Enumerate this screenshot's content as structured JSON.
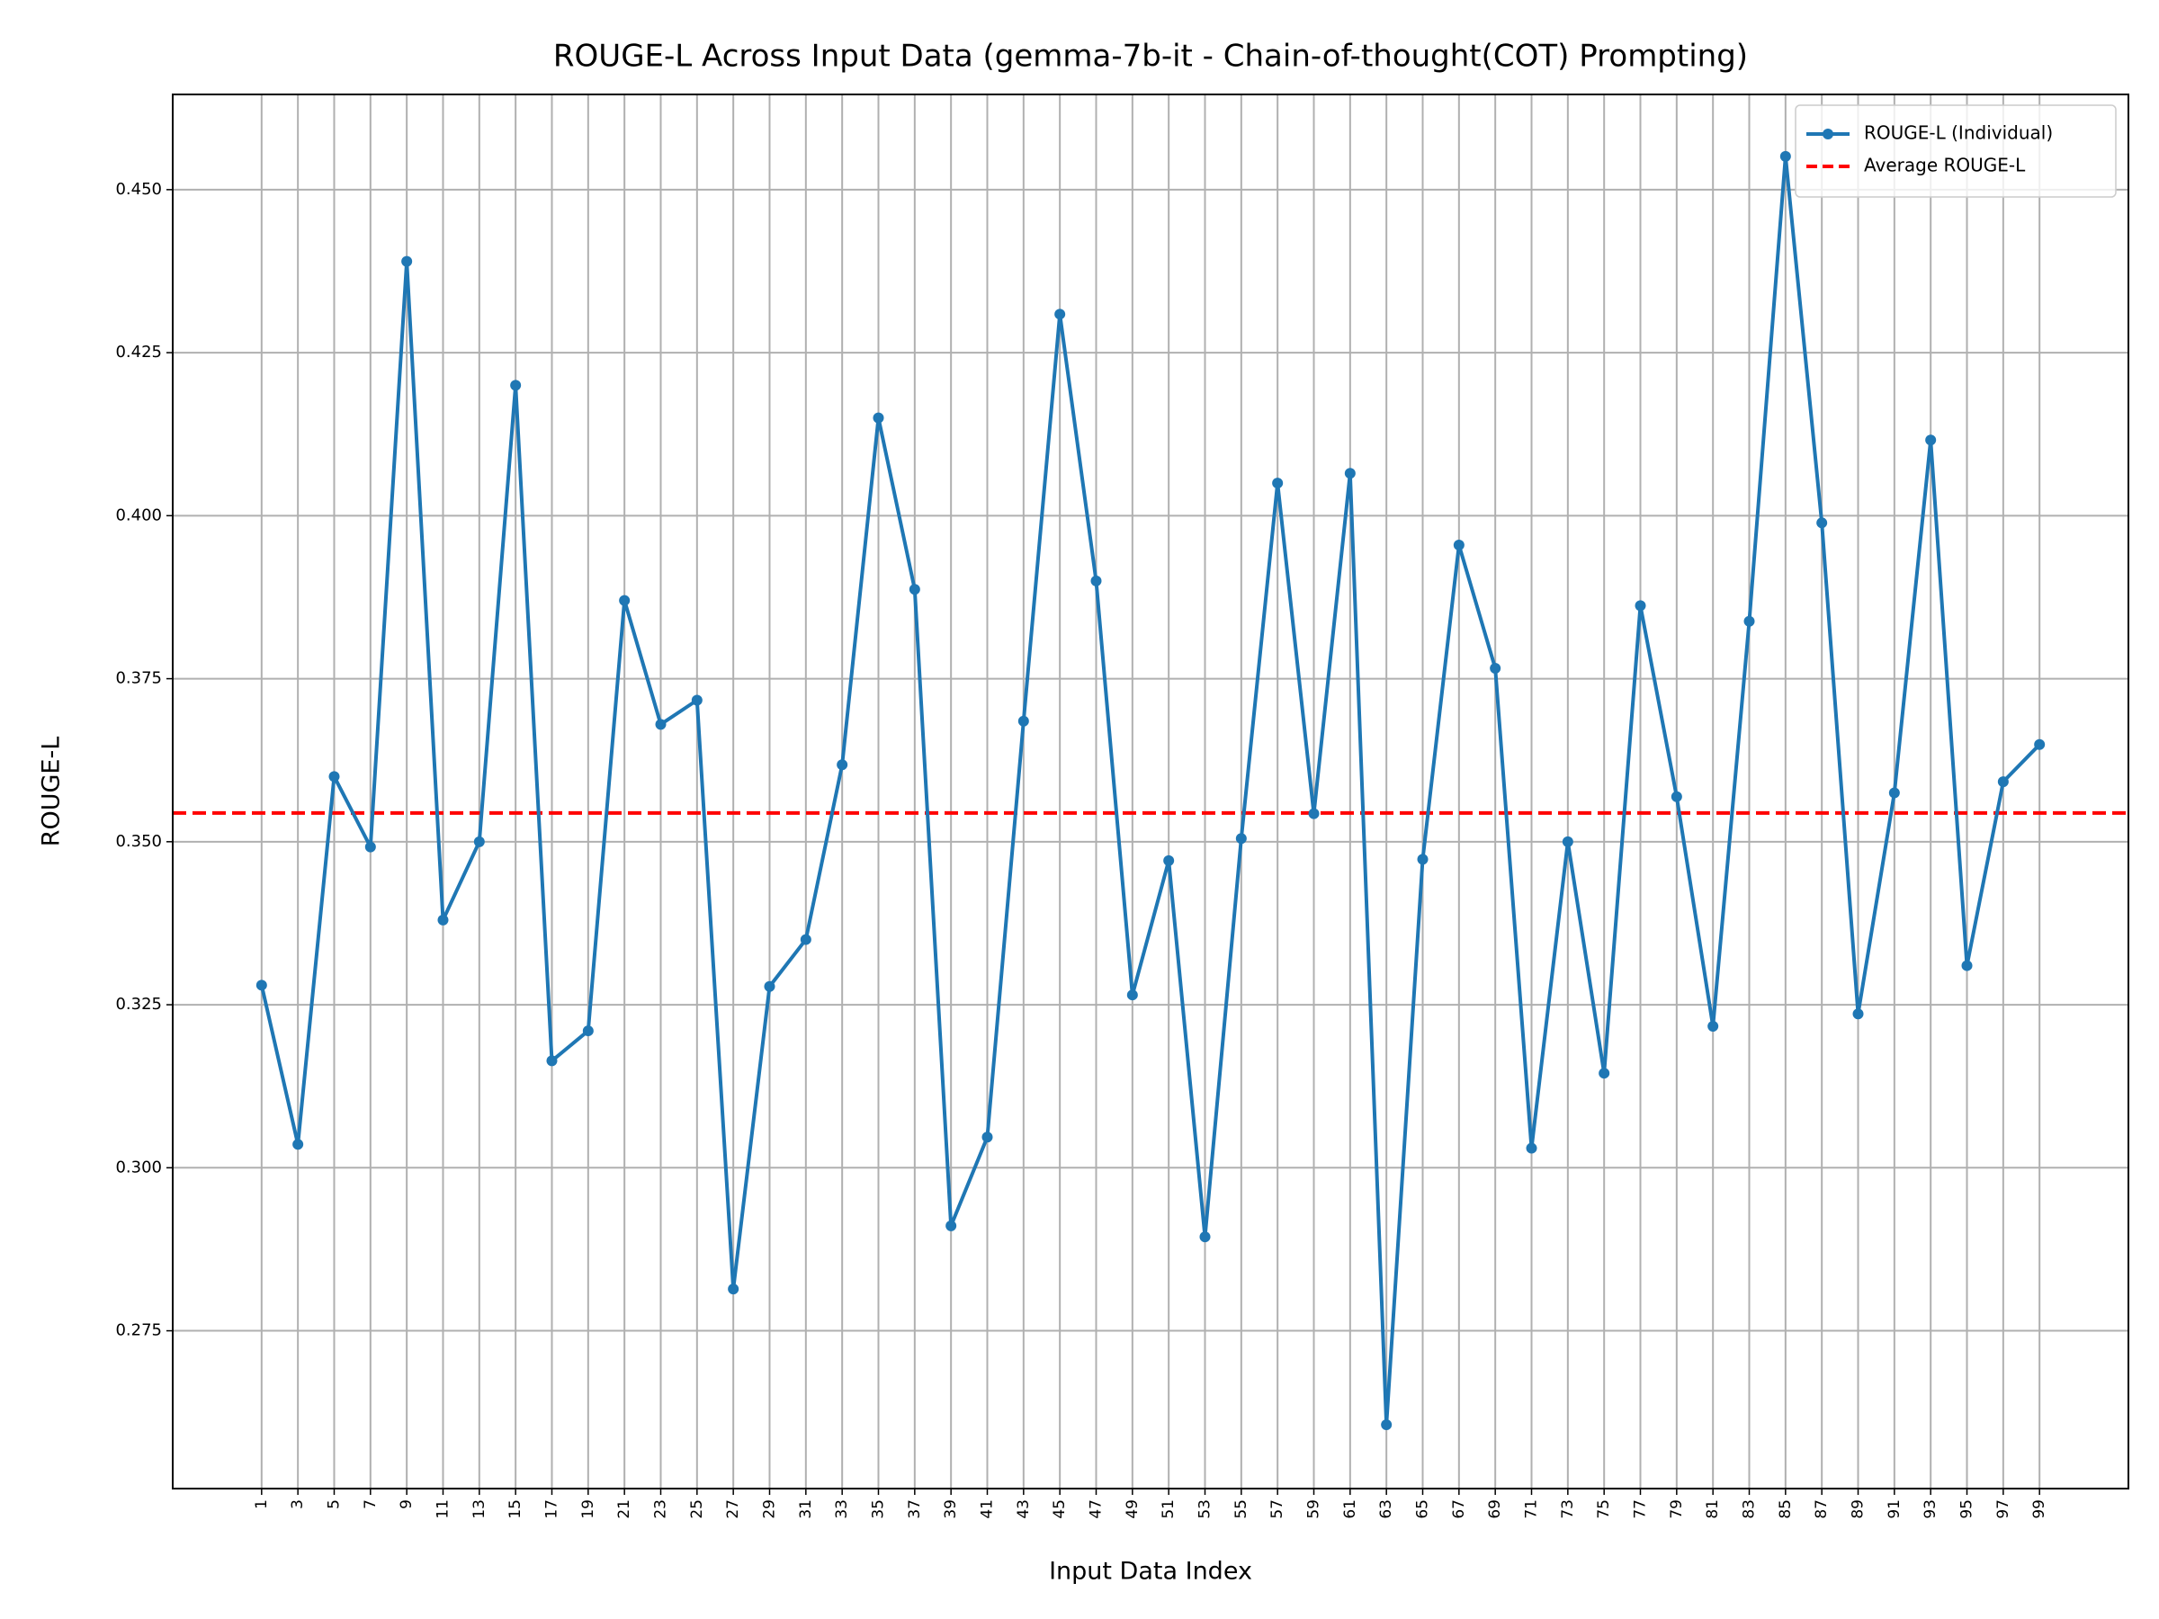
{
  "chart_data": {
    "type": "line",
    "title": "ROUGE-L Across Input Data (gemma-7b-it - Chain-of-thought(COT) Prompting)",
    "xlabel": "Input Data Index",
    "ylabel": "ROUGE-L",
    "x": [
      1,
      3,
      5,
      7,
      9,
      11,
      13,
      15,
      17,
      19,
      21,
      23,
      25,
      27,
      29,
      31,
      33,
      35,
      37,
      39,
      41,
      43,
      45,
      47,
      49,
      51,
      53,
      55,
      57,
      59,
      61,
      63,
      65,
      67,
      69,
      71,
      73,
      75,
      77,
      79,
      81,
      83,
      85,
      87,
      89,
      91,
      93,
      95,
      97,
      99
    ],
    "series": [
      {
        "name": "ROUGE-L (Individual)",
        "color": "#1f77b4",
        "values": [
          0.328,
          0.3036,
          0.36,
          0.3492,
          0.439,
          0.338,
          0.35,
          0.42,
          0.3164,
          0.321,
          0.387,
          0.368,
          0.3717,
          0.2814,
          0.3278,
          0.335,
          0.3618,
          0.415,
          0.3887,
          0.2911,
          0.3047,
          0.3685,
          0.4309,
          0.39,
          0.3265,
          0.3471,
          0.2894,
          0.3505,
          0.405,
          0.3543,
          0.4065,
          0.2606,
          0.3473,
          0.3955,
          0.3766,
          0.303,
          0.35,
          0.3145,
          0.3862,
          0.3569,
          0.3217,
          0.3838,
          0.4551,
          0.3989,
          0.3236,
          0.3575,
          0.4116,
          0.331,
          0.3592,
          0.3649
        ]
      }
    ],
    "hlines": [
      {
        "name": "Average ROUGE-L",
        "color": "#ff0000",
        "value": 0.3544
      }
    ],
    "xlim": [
      -3.9,
      103.9
    ],
    "ylim": [
      0.2508,
      0.4646
    ],
    "xticks": [
      1,
      3,
      5,
      7,
      9,
      11,
      13,
      15,
      17,
      19,
      21,
      23,
      25,
      27,
      29,
      31,
      33,
      35,
      37,
      39,
      41,
      43,
      45,
      47,
      49,
      51,
      53,
      55,
      57,
      59,
      61,
      63,
      65,
      67,
      69,
      71,
      73,
      75,
      77,
      79,
      81,
      83,
      85,
      87,
      89,
      91,
      93,
      95,
      97,
      99
    ],
    "yticks": [
      0.275,
      {
        "value": 0.3,
        "label": "0.300"
      },
      0.325,
      {
        "value": 0.35,
        "label": "0.350"
      },
      0.375,
      {
        "value": 0.4,
        "label": "0.400"
      },
      0.425,
      {
        "value": 0.45,
        "label": "0.450"
      }
    ],
    "grid": true,
    "legend": "upper right"
  }
}
